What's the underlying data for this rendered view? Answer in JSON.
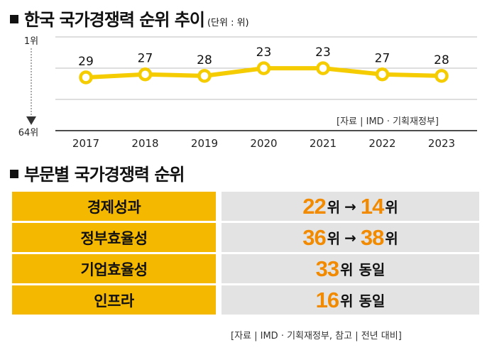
{
  "chart1": {
    "title": "한국 국가경쟁력 순위 추이",
    "unit_note": "(단위 : 위)",
    "source": "[자료 | IMD · 기획재정부]",
    "y_top_label": "1위",
    "y_bottom_label": "64위"
  },
  "chart_data": {
    "type": "line",
    "x": [
      "2017",
      "2018",
      "2019",
      "2020",
      "2021",
      "2022",
      "2023"
    ],
    "values": [
      29,
      27,
      28,
      23,
      23,
      27,
      28
    ],
    "y_axis": "inverted rank (1위 top, 64위 bottom)",
    "line_color": "#f5cc00"
  },
  "section2": {
    "title": "부문별 국가경쟁력 순위",
    "rows": [
      {
        "label": "경제성과",
        "prev": "22",
        "curr": "14",
        "prev_unit": "위",
        "curr_unit": "위",
        "same": ""
      },
      {
        "label": "정부효율성",
        "prev": "36",
        "curr": "38",
        "prev_unit": "위",
        "curr_unit": "위",
        "same": ""
      },
      {
        "label": "기업효율성",
        "value": "33",
        "unit": "위",
        "same": "동일"
      },
      {
        "label": "인프라",
        "value": "16",
        "unit": "위",
        "same": "동일"
      }
    ],
    "arrow": "→",
    "source": "[자료 | IMD · 기획재정부, 참고 | 전년 대비]"
  },
  "colors": {
    "label_bg": "#f5b800",
    "value_bg": "#e3e3e3",
    "highlight": "#f28a00"
  }
}
